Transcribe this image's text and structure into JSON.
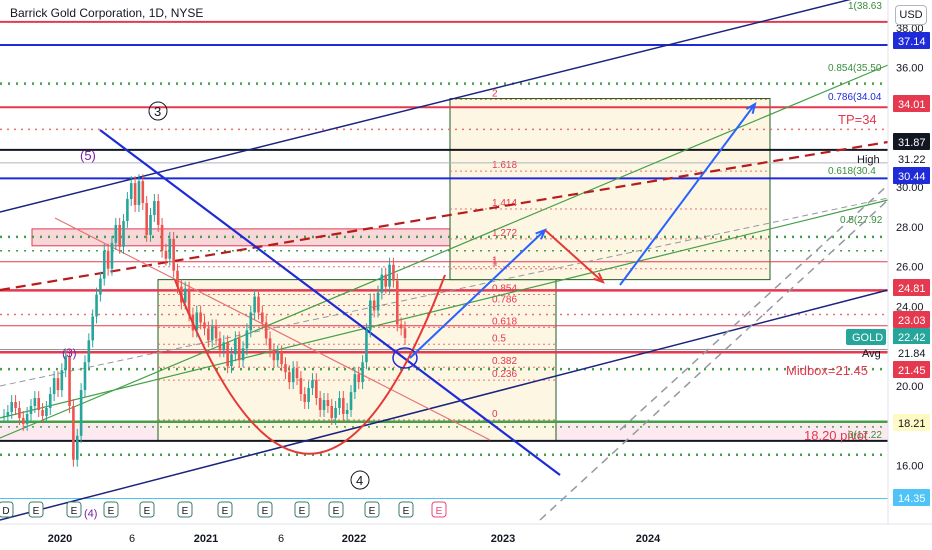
{
  "header": {
    "symbol_title": "Barrick Gold Corporation, 1D, NYSE",
    "currency": "USD"
  },
  "colors": {
    "candle_up": "#26a69a",
    "candle_down": "#ef5350",
    "box_fill": "#fdf6e3",
    "box_border": "#1b5e20",
    "red_line": "#e53950",
    "blue_line": "#1e2bd7",
    "navy_line": "#1a237e",
    "green_line": "#43a047",
    "fib_red": "#e57373",
    "arrow_blue": "#2962ff"
  },
  "chart_data": {
    "type": "line",
    "ylim": [
      14,
      38.7
    ],
    "price_ticks": [
      16.0,
      18.0,
      20.0,
      22.0,
      24.0,
      26.0,
      28.0,
      30.0,
      32.0,
      34.0,
      36.0,
      38.0
    ],
    "xaxis_labels": [
      "2020",
      "6",
      "2021",
      "6",
      "2022",
      "2023",
      "2024"
    ],
    "price_series_polyline": "daily close values, estimated",
    "series": [
      {
        "name": "GOLD",
        "values": [
          18.5,
          18.7,
          19.2,
          18.9,
          18.4,
          18.1,
          18.6,
          19.0,
          19.4,
          18.8,
          18.5,
          18.9,
          19.6,
          20.4,
          19.8,
          20.8,
          21.5,
          19.0,
          16.3,
          17.5,
          19.8,
          21.2,
          22.3,
          23.5,
          24.6,
          25.4,
          26.8,
          25.9,
          27.2,
          28.1,
          27.0,
          28.3,
          29.4,
          30.2,
          29.1,
          30.3,
          29.2,
          27.6,
          28.6,
          29.3,
          28.1,
          26.8,
          26.4,
          27.4,
          25.8,
          25.0,
          24.2,
          24.9,
          23.6,
          22.8,
          23.7,
          23.2,
          22.9,
          22.3,
          23.0,
          22.4,
          21.8,
          22.2,
          21.0,
          21.6,
          22.4,
          21.3,
          21.9,
          22.8,
          23.7,
          24.5,
          23.7,
          23.2,
          22.4,
          21.8,
          21.3,
          21.7,
          21.1,
          20.7,
          20.2,
          20.9,
          20.4,
          19.6,
          19.2,
          19.9,
          20.3,
          19.4,
          18.8,
          19.3,
          19.0,
          18.4,
          18.9,
          19.4,
          18.6,
          18.8,
          19.7,
          20.6,
          20.2,
          21.2,
          22.8,
          24.3,
          23.8,
          24.7,
          25.6,
          25.0,
          26.1,
          25.3,
          23.1,
          22.9,
          22.42
        ]
      }
    ],
    "labels": {
      "tp": "TP=34",
      "midbox": "Midbox=21.45",
      "pivot": "18.20 pivot",
      "high": "High",
      "avg": "Avg",
      "gold": "GOLD",
      "wave_3": "3",
      "wave_4": "4",
      "wave_5_paren": "(5)",
      "wave_3_paren": "(3)",
      "wave_4_paren": "(4)"
    },
    "price_tags": [
      {
        "value": "37.14",
        "color": "#1e2bd7"
      },
      {
        "value": "34.01",
        "color": "#e53950"
      },
      {
        "value": "31.87",
        "color": "#131722"
      },
      {
        "value": "31.22",
        "color": "#ffffff"
      },
      {
        "value": "30.44",
        "color": "#1e2bd7"
      },
      {
        "value": "24.81",
        "color": "#e53950"
      },
      {
        "value": "23.03",
        "color": "#e53950"
      },
      {
        "value": "22.42",
        "color": "#26a69a"
      },
      {
        "value": "21.84",
        "color": "#ffffff"
      },
      {
        "value": "21.45",
        "color": "#e53950"
      },
      {
        "value": "18.21",
        "color": "#fff9c4"
      },
      {
        "value": "14.35",
        "color": "#4fc3f7"
      }
    ],
    "fib_box_lower": {
      "levels": [
        "1",
        "0.854",
        "0.786",
        "0.618",
        "0.5",
        "0.382",
        "0.236",
        "0"
      ]
    },
    "fib_box_upper": {
      "levels": [
        "2",
        "1.618",
        "1.414",
        "1.272",
        "1"
      ]
    },
    "fib_right_labels": [
      "1(38.63",
      "0.854(35.50",
      "0.786(34.04",
      "0.618(30.4",
      "0.5(27.92",
      "0(17.22"
    ],
    "earnings_markers": [
      "D",
      "E",
      "E",
      "E",
      "E",
      "E",
      "E",
      "E",
      "E",
      "E",
      "E",
      "E",
      "E",
      "E",
      "E",
      "E"
    ]
  }
}
